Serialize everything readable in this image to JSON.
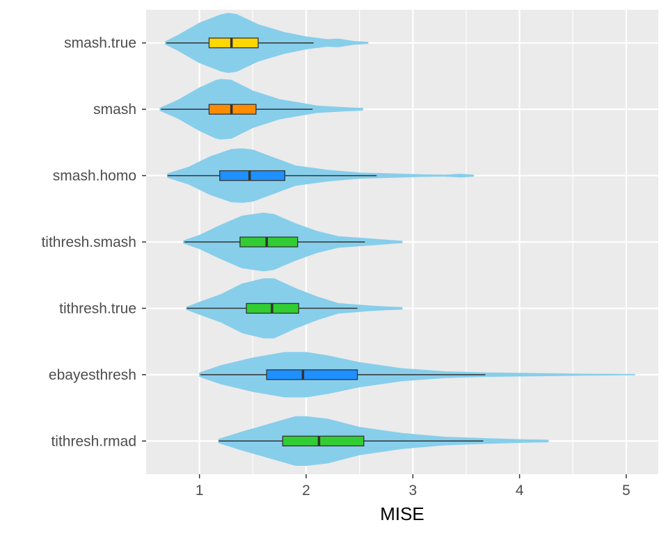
{
  "chart_data": {
    "type": "violin-box",
    "orientation": "horizontal",
    "xlabel": "MISE",
    "ylabel": "",
    "xlim": [
      0.5,
      5.3
    ],
    "xticks": [
      1,
      2,
      3,
      4,
      5
    ],
    "grid": true,
    "legend": "none",
    "violin_color": "#87CEEB",
    "categories": [
      "smash.true",
      "smash",
      "smash.homo",
      "tithresh.smash",
      "tithresh.true",
      "ebayesthresh",
      "tithresh.rmad"
    ],
    "series": [
      {
        "label": "smash.true",
        "box_color": "#FFD700",
        "violin": [
          [
            0.68,
            0.04
          ],
          [
            0.8,
            0.25
          ],
          [
            1.0,
            0.65
          ],
          [
            1.2,
            0.92
          ],
          [
            1.27,
            0.97
          ],
          [
            1.35,
            0.93
          ],
          [
            1.55,
            0.6
          ],
          [
            1.8,
            0.34
          ],
          [
            2.0,
            0.2
          ],
          [
            2.2,
            0.11
          ],
          [
            2.3,
            0.13
          ],
          [
            2.45,
            0.05
          ],
          [
            2.58,
            0.02
          ]
        ],
        "box": {
          "whisker_low": 0.69,
          "q1": 1.09,
          "median": 1.3,
          "q3": 1.55,
          "whisker_high": 2.07
        }
      },
      {
        "label": "smash",
        "box_color": "#FF8C00",
        "violin": [
          [
            0.63,
            0.04
          ],
          [
            0.8,
            0.3
          ],
          [
            1.0,
            0.7
          ],
          [
            1.15,
            0.94
          ],
          [
            1.2,
            0.98
          ],
          [
            1.3,
            0.95
          ],
          [
            1.5,
            0.6
          ],
          [
            1.75,
            0.32
          ],
          [
            1.95,
            0.2
          ],
          [
            2.1,
            0.11
          ],
          [
            2.2,
            0.09
          ],
          [
            2.35,
            0.06
          ],
          [
            2.53,
            0.03
          ]
        ],
        "box": {
          "whisker_low": 0.64,
          "q1": 1.09,
          "median": 1.3,
          "q3": 1.53,
          "whisker_high": 2.06
        }
      },
      {
        "label": "smash.homo",
        "box_color": "#1E90FF",
        "violin": [
          [
            0.7,
            0.06
          ],
          [
            0.9,
            0.28
          ],
          [
            1.1,
            0.62
          ],
          [
            1.3,
            0.86
          ],
          [
            1.4,
            0.88
          ],
          [
            1.5,
            0.84
          ],
          [
            1.7,
            0.58
          ],
          [
            1.9,
            0.32
          ],
          [
            2.2,
            0.18
          ],
          [
            2.5,
            0.09
          ],
          [
            2.8,
            0.06
          ],
          [
            3.1,
            0.03
          ],
          [
            3.3,
            0.02
          ],
          [
            3.45,
            0.05
          ],
          [
            3.57,
            0.02
          ]
        ],
        "box": {
          "whisker_low": 0.7,
          "q1": 1.19,
          "median": 1.47,
          "q3": 1.8,
          "whisker_high": 2.66
        }
      },
      {
        "label": "tithresh.smash",
        "box_color": "#32CD32",
        "violin": [
          [
            0.85,
            0.04
          ],
          [
            1.0,
            0.22
          ],
          [
            1.2,
            0.55
          ],
          [
            1.4,
            0.85
          ],
          [
            1.6,
            0.95
          ],
          [
            1.7,
            0.9
          ],
          [
            1.9,
            0.6
          ],
          [
            2.1,
            0.35
          ],
          [
            2.3,
            0.18
          ],
          [
            2.5,
            0.13
          ],
          [
            2.65,
            0.09
          ],
          [
            2.8,
            0.05
          ],
          [
            2.9,
            0.03
          ]
        ],
        "box": {
          "whisker_low": 0.86,
          "q1": 1.38,
          "median": 1.63,
          "q3": 1.92,
          "whisker_high": 2.55
        }
      },
      {
        "label": "tithresh.true",
        "box_color": "#32CD32",
        "violin": [
          [
            0.88,
            0.04
          ],
          [
            1.0,
            0.2
          ],
          [
            1.2,
            0.45
          ],
          [
            1.4,
            0.8
          ],
          [
            1.6,
            0.97
          ],
          [
            1.7,
            0.97
          ],
          [
            1.9,
            0.65
          ],
          [
            2.1,
            0.38
          ],
          [
            2.3,
            0.16
          ],
          [
            2.45,
            0.12
          ],
          [
            2.6,
            0.08
          ],
          [
            2.75,
            0.05
          ],
          [
            2.9,
            0.03
          ]
        ],
        "box": {
          "whisker_low": 0.88,
          "q1": 1.44,
          "median": 1.68,
          "q3": 1.93,
          "whisker_high": 2.48
        }
      },
      {
        "label": "ebayesthresh",
        "box_color": "#1E90FF",
        "violin": [
          [
            1.0,
            0.06
          ],
          [
            1.2,
            0.3
          ],
          [
            1.5,
            0.55
          ],
          [
            1.8,
            0.73
          ],
          [
            2.0,
            0.73
          ],
          [
            2.2,
            0.62
          ],
          [
            2.5,
            0.4
          ],
          [
            2.9,
            0.2
          ],
          [
            3.3,
            0.1
          ],
          [
            3.7,
            0.06
          ],
          [
            4.2,
            0.04
          ],
          [
            4.6,
            0.02
          ],
          [
            5.08,
            0.01
          ]
        ],
        "box": {
          "whisker_low": 1.01,
          "q1": 1.63,
          "median": 1.97,
          "q3": 2.48,
          "whisker_high": 3.68
        }
      },
      {
        "label": "tithresh.rmad",
        "box_color": "#32CD32",
        "violin": [
          [
            1.18,
            0.06
          ],
          [
            1.4,
            0.3
          ],
          [
            1.7,
            0.6
          ],
          [
            1.9,
            0.8
          ],
          [
            2.0,
            0.8
          ],
          [
            2.2,
            0.72
          ],
          [
            2.5,
            0.45
          ],
          [
            2.9,
            0.25
          ],
          [
            3.3,
            0.13
          ],
          [
            3.7,
            0.08
          ],
          [
            4.0,
            0.05
          ],
          [
            4.27,
            0.03
          ]
        ],
        "box": {
          "whisker_low": 1.18,
          "q1": 1.78,
          "median": 2.12,
          "q3": 2.54,
          "whisker_high": 3.66
        }
      }
    ]
  }
}
